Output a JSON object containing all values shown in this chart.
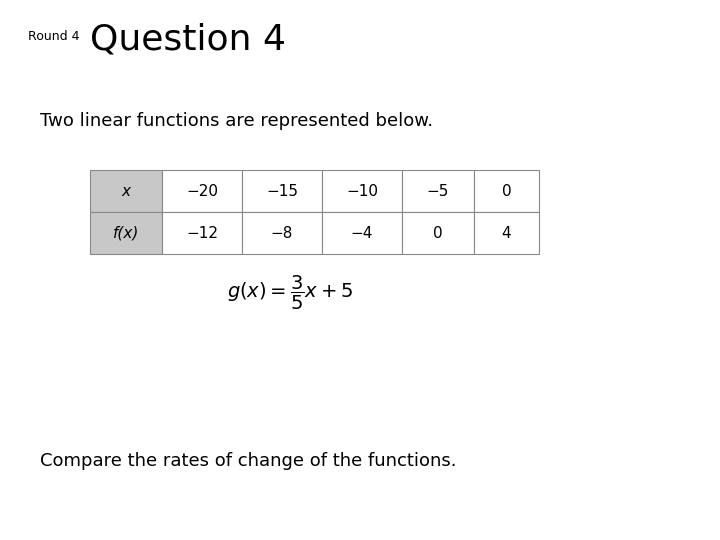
{
  "title_small": "Round 4",
  "title_large": "Question 4",
  "subtitle": "Two linear functions are represented below.",
  "table_headers": [
    "x",
    "−20",
    "−15",
    "−10",
    "−5",
    "0"
  ],
  "table_row2": [
    "f(x)",
    "−12",
    "−8",
    "−4",
    "0",
    "4"
  ],
  "footer": "Compare the rates of change of the functions.",
  "bg_color": "#ffffff",
  "table_header_bg": "#c8c8c8",
  "table_border_color": "#888888",
  "text_color": "#000000",
  "title_small_fontsize": 9,
  "title_large_fontsize": 26,
  "subtitle_fontsize": 13,
  "footer_fontsize": 13,
  "table_fontsize": 11,
  "formula_fontsize": 14
}
